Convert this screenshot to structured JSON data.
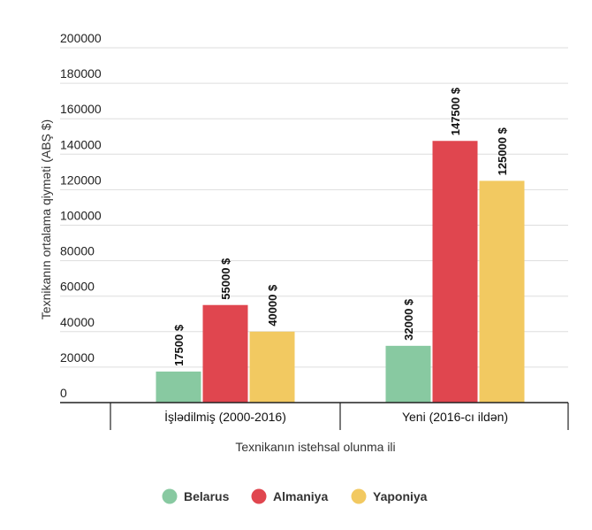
{
  "chart_data": {
    "type": "bar",
    "xlabel": "Texnikanın istehsal olunma ili",
    "ylabel": "Texnikanın ortalama qiymәti (ABŞ $)",
    "categories": [
      "İşlәdilmiş (2000-2016)",
      "Yeni (2016-cı ildәn)"
    ],
    "ylim": [
      0,
      200000
    ],
    "yticks": [
      "0",
      "20000",
      "40000",
      "60000",
      "80000",
      "100000",
      "120000",
      "140000",
      "160000",
      "180000",
      "200000"
    ],
    "grid": true,
    "legend_position": "bottom",
    "series": [
      {
        "name": "Belarus",
        "color": "#88c9a1",
        "values": [
          17500,
          32000
        ],
        "labels": [
          "17500 $",
          "32000 $"
        ]
      },
      {
        "name": "Almaniya",
        "color": "#e0464f",
        "values": [
          55000,
          147500
        ],
        "labels": [
          "55000 $",
          "147500 $"
        ]
      },
      {
        "name": "Yaponiya",
        "color": "#f2c961",
        "values": [
          40000,
          125000
        ],
        "labels": [
          "40000 $",
          "125000 $"
        ]
      }
    ]
  }
}
